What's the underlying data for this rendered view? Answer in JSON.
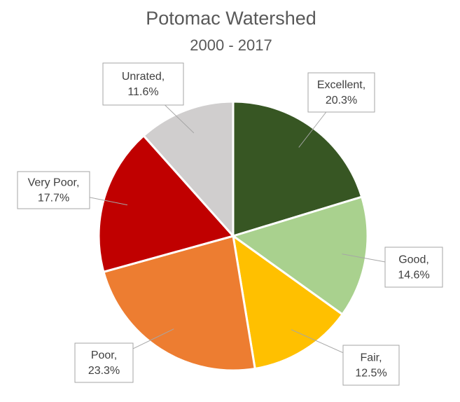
{
  "chart_data": {
    "type": "pie",
    "title": "Potomac Watershed",
    "subtitle": "2000 - 2017",
    "categories": [
      "Excellent",
      "Good",
      "Fair",
      "Poor",
      "Very Poor",
      "Unrated"
    ],
    "values": [
      20.3,
      14.6,
      12.5,
      23.3,
      17.7,
      11.6
    ],
    "value_labels": [
      "20.3%",
      "14.6%",
      "12.5%",
      "23.3%",
      "17.7%",
      "11.6%"
    ],
    "label_separator": ",",
    "colors": [
      "#375623",
      "#a9d18e",
      "#ffc000",
      "#ed7d31",
      "#c00000",
      "#d0cece"
    ]
  }
}
